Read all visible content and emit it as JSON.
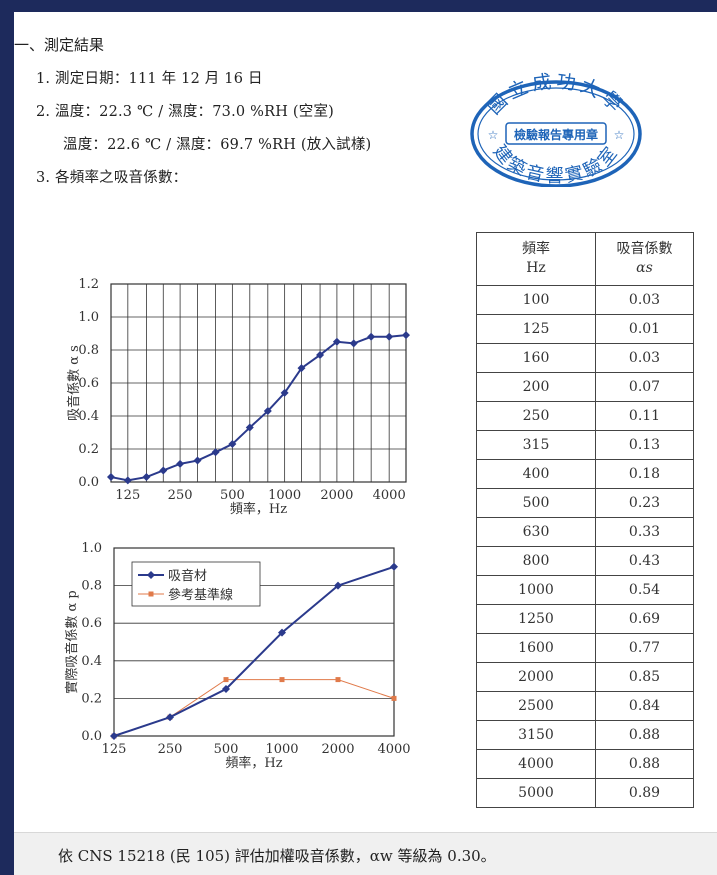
{
  "section_title": "一、測定結果",
  "items": {
    "date": "1. 測定日期：111 年 12 月 16 日",
    "temp1": "2. 溫度：22.3 ℃ / 濕度：73.0 %RH (空室)",
    "temp2": "溫度：22.6 ℃ / 濕度：69.7 %RH (放入試樣)",
    "coef": "3. 各頻率之吸音係數："
  },
  "stamp": {
    "top": "國立成功大學",
    "middle": "檢驗報告專用章",
    "bottom": "建築音響實驗室",
    "color": "#1e64b8"
  },
  "table": {
    "header_freq": "頻率",
    "header_freq_unit": "Hz",
    "header_coef": "吸音係數",
    "header_coef_symbol": "αs",
    "rows": [
      [
        "100",
        "0.03"
      ],
      [
        "125",
        "0.01"
      ],
      [
        "160",
        "0.03"
      ],
      [
        "200",
        "0.07"
      ],
      [
        "250",
        "0.11"
      ],
      [
        "315",
        "0.13"
      ],
      [
        "400",
        "0.18"
      ],
      [
        "500",
        "0.23"
      ],
      [
        "630",
        "0.33"
      ],
      [
        "800",
        "0.43"
      ],
      [
        "1000",
        "0.54"
      ],
      [
        "1250",
        "0.69"
      ],
      [
        "1600",
        "0.77"
      ],
      [
        "2000",
        "0.85"
      ],
      [
        "2500",
        "0.84"
      ],
      [
        "3150",
        "0.88"
      ],
      [
        "4000",
        "0.88"
      ],
      [
        "5000",
        "0.89"
      ]
    ]
  },
  "chart_data": [
    {
      "type": "line",
      "x": [
        100,
        125,
        160,
        200,
        250,
        315,
        400,
        500,
        630,
        800,
        1000,
        1250,
        1600,
        2000,
        2500,
        3150,
        4000,
        5000
      ],
      "series": [
        {
          "name": "",
          "values": [
            0.03,
            0.01,
            0.03,
            0.07,
            0.11,
            0.13,
            0.18,
            0.23,
            0.33,
            0.43,
            0.54,
            0.69,
            0.77,
            0.85,
            0.84,
            0.88,
            0.88,
            0.89
          ],
          "color": "#2b3a8c"
        }
      ],
      "xticks": [
        "125",
        "250",
        "500",
        "1000",
        "2000",
        "4000"
      ],
      "xlabel": "頻率，Hz",
      "ylabel": "吸音係數 α s",
      "yticks": [
        "0.0",
        "0.2",
        "0.4",
        "0.6",
        "0.8",
        "1.0",
        "1.2"
      ],
      "ylim": [
        0,
        1.2
      ],
      "grid": true
    },
    {
      "type": "line",
      "categories": [
        "125",
        "250",
        "500",
        "1000",
        "2000",
        "4000"
      ],
      "series": [
        {
          "name": "吸音材",
          "values": [
            0.0,
            0.1,
            0.25,
            0.55,
            0.8,
            0.9
          ],
          "color": "#2b3a8c",
          "marker": "diamond"
        },
        {
          "name": "參考基準線",
          "values": [
            0.0,
            0.1,
            0.3,
            0.3,
            0.3,
            0.2
          ],
          "color": "#e07a4a",
          "marker": "square"
        }
      ],
      "xlabel": "頻率，Hz",
      "ylabel": "實際吸音係數 α p",
      "yticks": [
        "0.0",
        "0.2",
        "0.4",
        "0.6",
        "0.8",
        "1.0"
      ],
      "ylim": [
        0,
        1.0
      ],
      "legend": "top-left"
    }
  ],
  "footer": "依 CNS 15218 (民 105) 評估加權吸音係數，αw 等級為 0.30。"
}
